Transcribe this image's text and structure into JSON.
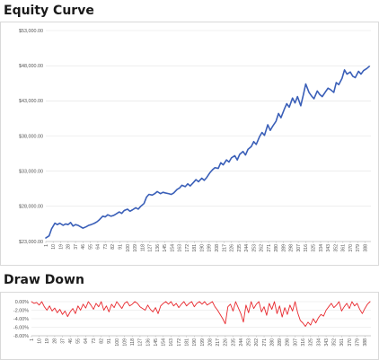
{
  "titles": {
    "equity": "Equity Curve",
    "drawdown": "Draw Down"
  },
  "colors": {
    "equity_line": "#3a5fb8",
    "drawdown_line": "#e8282d"
  },
  "x_ticks": [
    1,
    10,
    19,
    28,
    37,
    46,
    55,
    64,
    73,
    82,
    91,
    100,
    109,
    118,
    127,
    136,
    145,
    154,
    163,
    172,
    181,
    190,
    199,
    208,
    217,
    226,
    235,
    244,
    253,
    262,
    271,
    280,
    289,
    298,
    307,
    316,
    325,
    334,
    343,
    352,
    361,
    370,
    379,
    388
  ],
  "chart_data": [
    {
      "type": "line",
      "title": "Equity Curve",
      "xlabel": "",
      "ylabel": "",
      "xlim": [
        1,
        395
      ],
      "ylim": [
        23000,
        53000
      ],
      "y_ticks": [
        23000,
        28000,
        33000,
        38000,
        43000,
        48000,
        53000
      ],
      "y_tick_labels": [
        "$23,000.00",
        "$28,000.00",
        "$33,000.00",
        "$38,000.00",
        "$43,000.00",
        "$48,000.00",
        "$53,000.00"
      ],
      "grid": true,
      "series": [
        {
          "x": [
            1,
            5,
            8,
            12,
            15,
            18,
            22,
            25,
            28,
            31,
            34,
            37,
            40,
            43,
            46,
            50,
            53,
            56,
            60,
            63,
            66,
            70,
            73,
            76,
            80,
            83,
            86,
            90,
            93,
            96,
            100,
            103,
            106,
            110,
            113,
            116,
            120,
            123,
            126,
            130,
            133,
            136,
            140,
            143,
            146,
            150,
            153,
            156,
            160,
            163,
            166,
            170,
            173,
            176,
            180,
            183,
            186,
            190,
            193,
            196,
            200,
            203,
            206,
            210,
            213,
            216,
            220,
            223,
            226,
            230,
            233,
            236,
            240,
            243,
            246,
            250,
            253,
            256,
            260,
            263,
            266,
            270,
            273,
            276,
            280,
            283,
            286,
            290,
            293,
            296,
            300,
            303,
            306,
            310,
            313,
            316,
            320,
            323,
            326,
            330,
            333,
            336,
            340,
            343,
            346,
            350,
            353,
            356,
            360,
            363,
            366,
            370,
            373,
            376,
            380,
            383,
            386,
            390,
            393
          ],
          "values": [
            23500,
            23800,
            24800,
            25600,
            25400,
            25600,
            25300,
            25500,
            25400,
            25700,
            25200,
            25400,
            25300,
            25100,
            24900,
            25100,
            25300,
            25400,
            25600,
            25800,
            26100,
            26600,
            26500,
            26800,
            26600,
            26700,
            26900,
            27200,
            27000,
            27400,
            27600,
            27300,
            27500,
            27800,
            27600,
            28000,
            28400,
            29300,
            29700,
            29600,
            29800,
            30100,
            29800,
            30000,
            29900,
            29800,
            29700,
            29900,
            30400,
            30600,
            31000,
            30800,
            31200,
            30900,
            31400,
            31800,
            31500,
            32000,
            31700,
            32100,
            32800,
            33200,
            33500,
            33400,
            34200,
            33900,
            34600,
            34300,
            34900,
            35200,
            34600,
            35400,
            35800,
            35300,
            36100,
            36500,
            37200,
            36800,
            37900,
            38500,
            38100,
            39600,
            38800,
            39400,
            40100,
            41200,
            40600,
            41800,
            42600,
            42100,
            43400,
            42700,
            43600,
            42300,
            43800,
            45400,
            44200,
            43700,
            43300,
            44400,
            43900,
            43600,
            44300,
            44800,
            44600,
            44200,
            45600,
            45300,
            46200,
            47400,
            46800,
            47100,
            46500,
            46300,
            47200,
            46800,
            47300,
            47600,
            47900
          ]
        }
      ]
    },
    {
      "type": "line",
      "title": "Draw Down",
      "xlabel": "",
      "ylabel": "",
      "xlim": [
        1,
        395
      ],
      "ylim": [
        -0.08,
        0.0
      ],
      "y_ticks": [
        0.0,
        -0.02,
        -0.04,
        -0.06,
        -0.08
      ],
      "y_tick_labels": [
        "0.00%",
        "-2.00%",
        "-4.00%",
        "-6.00%",
        "-8.00%"
      ],
      "grid": true,
      "series": [
        {
          "x": [
            1,
            4,
            7,
            10,
            13,
            16,
            19,
            22,
            25,
            28,
            31,
            34,
            37,
            40,
            43,
            46,
            49,
            52,
            55,
            58,
            61,
            64,
            67,
            70,
            73,
            76,
            79,
            82,
            85,
            88,
            91,
            94,
            97,
            100,
            103,
            106,
            109,
            112,
            115,
            118,
            121,
            124,
            127,
            130,
            133,
            136,
            139,
            142,
            145,
            148,
            151,
            154,
            157,
            160,
            163,
            166,
            169,
            172,
            175,
            178,
            181,
            184,
            187,
            190,
            193,
            196,
            199,
            202,
            205,
            208,
            211,
            214,
            217,
            220,
            223,
            226,
            229,
            232,
            235,
            238,
            241,
            244,
            247,
            250,
            253,
            256,
            259,
            262,
            265,
            268,
            271,
            274,
            277,
            280,
            283,
            286,
            289,
            292,
            295,
            298,
            301,
            304,
            307,
            310,
            313,
            316,
            319,
            322,
            325,
            328,
            331,
            334,
            337,
            340,
            343,
            346,
            349,
            352,
            355,
            358,
            361,
            364,
            367,
            370,
            373,
            376,
            379,
            382,
            385,
            388,
            391,
            394
          ],
          "values": [
            0.0,
            -0.004,
            -0.002,
            -0.008,
            0.0,
            -0.012,
            -0.02,
            -0.01,
            -0.022,
            -0.015,
            -0.026,
            -0.018,
            -0.03,
            -0.022,
            -0.035,
            -0.024,
            -0.016,
            -0.028,
            -0.01,
            -0.02,
            -0.006,
            -0.015,
            0.0,
            -0.008,
            -0.018,
            -0.004,
            -0.012,
            0.0,
            -0.02,
            -0.01,
            -0.024,
            -0.006,
            -0.014,
            0.0,
            -0.008,
            -0.016,
            -0.004,
            0.0,
            -0.01,
            -0.006,
            0.0,
            -0.004,
            -0.012,
            -0.016,
            -0.02,
            -0.008,
            -0.018,
            -0.024,
            -0.014,
            -0.028,
            -0.01,
            -0.004,
            0.0,
            -0.006,
            0.0,
            -0.01,
            -0.004,
            -0.014,
            -0.006,
            0.0,
            -0.01,
            -0.004,
            0.0,
            -0.012,
            -0.004,
            0.0,
            -0.006,
            0.0,
            -0.008,
            -0.004,
            0.0,
            -0.012,
            -0.02,
            -0.03,
            -0.04,
            -0.052,
            -0.012,
            -0.006,
            -0.022,
            0.0,
            -0.014,
            -0.028,
            -0.048,
            -0.008,
            -0.026,
            0.0,
            -0.016,
            -0.006,
            0.0,
            -0.024,
            -0.012,
            -0.032,
            -0.004,
            -0.018,
            0.0,
            -0.028,
            -0.01,
            -0.036,
            -0.014,
            -0.03,
            -0.008,
            -0.022,
            0.0,
            -0.026,
            -0.044,
            -0.05,
            -0.058,
            -0.048,
            -0.055,
            -0.04,
            -0.05,
            -0.038,
            -0.03,
            -0.034,
            -0.02,
            -0.012,
            -0.004,
            -0.014,
            -0.008,
            0.0,
            -0.022,
            -0.012,
            -0.004,
            -0.016,
            0.0,
            -0.01,
            -0.004,
            -0.018,
            -0.028,
            -0.016,
            -0.006,
            0.0
          ]
        }
      ]
    }
  ]
}
